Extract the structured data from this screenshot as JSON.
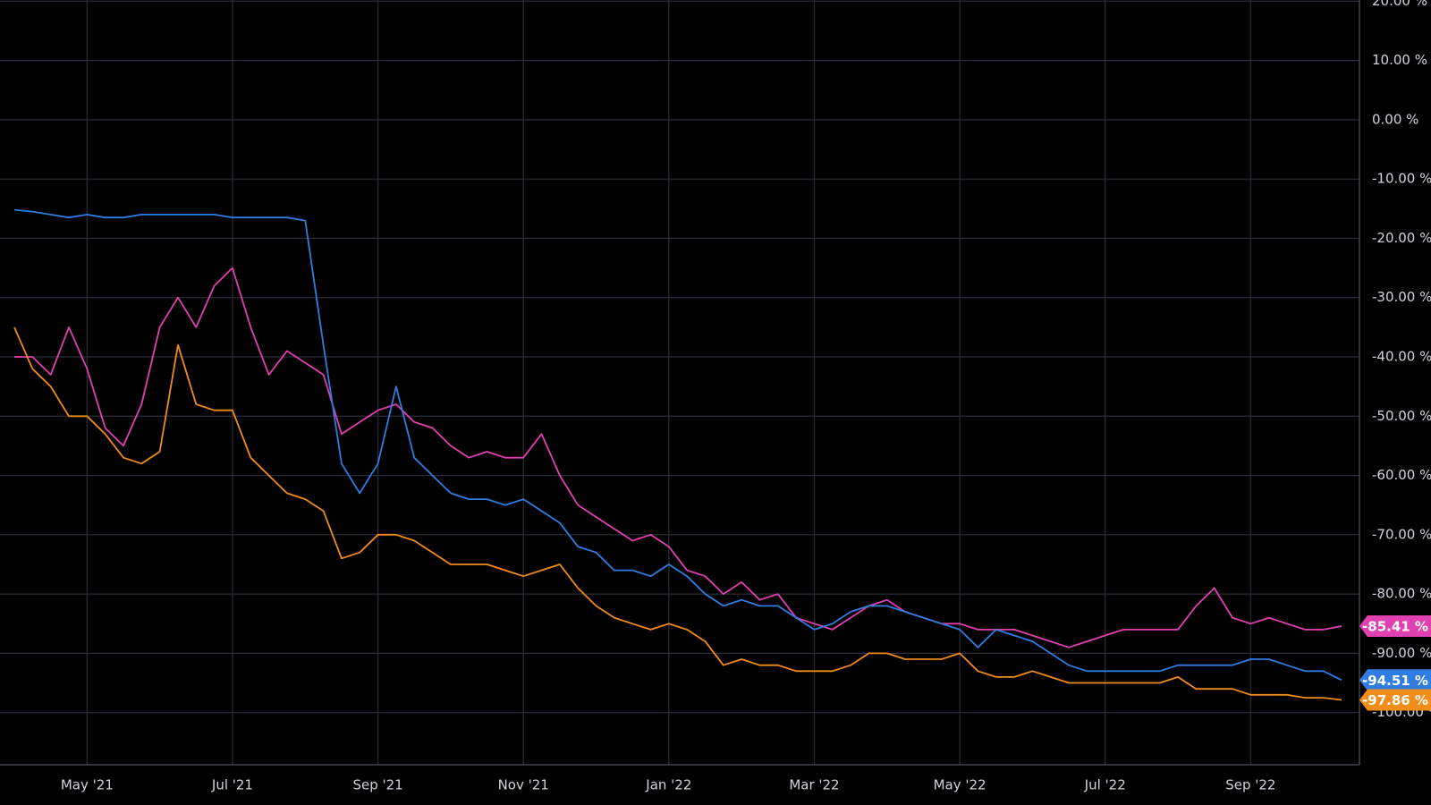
{
  "chart_data": {
    "type": "line",
    "categories": [
      null,
      null,
      null,
      null,
      "May '21",
      null,
      null,
      null,
      null,
      null,
      null,
      null,
      "Jul '21",
      null,
      null,
      null,
      null,
      null,
      null,
      null,
      "Sep '21",
      null,
      null,
      null,
      null,
      null,
      null,
      null,
      "Nov '21",
      null,
      null,
      null,
      null,
      null,
      null,
      null,
      "Jan '22",
      null,
      null,
      null,
      null,
      null,
      null,
      null,
      "Mar '22",
      null,
      null,
      null,
      null,
      null,
      null,
      null,
      "May '22",
      null,
      null,
      null,
      null,
      null,
      null,
      null,
      "Jul '22",
      null,
      null,
      null,
      null,
      null,
      null,
      null,
      "Sep '22",
      null,
      null,
      null,
      null,
      null
    ],
    "series": [
      {
        "color": "#e040b0",
        "values": [
          -40,
          -40,
          -43,
          -35,
          -42,
          -52,
          -55,
          -48,
          -35,
          -30,
          -35,
          -28,
          -25,
          -35,
          -43,
          -39,
          -41,
          -43,
          -53,
          -51,
          -49,
          -48,
          -51,
          -52,
          -55,
          -57,
          -56,
          -57,
          -57,
          -53,
          -60,
          -65,
          -67,
          -69,
          -71,
          -70,
          -72,
          -76,
          -77,
          -80,
          -78,
          -81,
          -80,
          -84,
          -85,
          -86,
          -84,
          -82,
          -81,
          -83,
          -84,
          -85,
          -85,
          -86,
          -86,
          -86,
          -87,
          -88,
          -89,
          -88,
          -87,
          -86,
          -86,
          -86,
          -86,
          -82,
          -79,
          -84,
          -85,
          -84,
          -85,
          -86,
          -86,
          -85.41
        ],
        "value_labels": [
          null,
          null,
          null,
          null,
          null,
          null,
          null,
          null,
          null,
          null,
          null,
          null,
          null,
          null,
          null,
          null,
          null,
          null,
          null,
          null,
          null,
          null,
          null,
          null,
          null,
          null,
          null,
          null,
          null,
          null,
          null,
          null,
          null,
          null,
          null,
          null,
          null,
          null,
          null,
          null,
          null,
          null,
          null,
          null,
          null,
          null,
          null,
          null,
          null,
          null,
          null,
          null,
          null,
          null,
          null,
          null,
          null,
          null,
          null,
          null,
          null,
          null,
          null,
          null,
          null,
          null,
          null,
          null,
          null,
          null,
          null,
          null,
          null,
          "-85.41 %"
        ]
      },
      {
        "color": "#2f7de1",
        "values": [
          -15.2,
          -15.5,
          -16,
          -16.5,
          -16,
          -16.5,
          -16.5,
          -16,
          -16,
          -16,
          -16,
          -16,
          -16.5,
          -16.5,
          -16.5,
          -16.5,
          -17,
          -38,
          -58,
          -63,
          -58,
          -45,
          -57,
          -60,
          -63,
          -64,
          -64,
          -65,
          -64,
          -66,
          -68,
          -72,
          -73,
          -76,
          -76,
          -77,
          -75,
          -77,
          -80,
          -82,
          -81,
          -82,
          -82,
          -84,
          -86,
          -85,
          -83,
          -82,
          -82,
          -83,
          -84,
          -85,
          -86,
          -89,
          -86,
          -87,
          -88,
          -90,
          -92,
          -93,
          -93,
          -93,
          -93,
          -93,
          -92,
          -92,
          -92,
          -92,
          -91,
          -91,
          -92,
          -93,
          -93,
          -94.51
        ],
        "value_labels": [
          null,
          null,
          null,
          null,
          null,
          null,
          null,
          null,
          null,
          null,
          null,
          null,
          null,
          null,
          null,
          null,
          null,
          null,
          null,
          null,
          null,
          null,
          null,
          null,
          null,
          null,
          null,
          null,
          null,
          null,
          null,
          null,
          null,
          null,
          null,
          null,
          null,
          null,
          null,
          null,
          null,
          null,
          null,
          null,
          null,
          null,
          null,
          null,
          null,
          null,
          null,
          null,
          null,
          null,
          null,
          null,
          null,
          null,
          null,
          null,
          null,
          null,
          null,
          null,
          null,
          null,
          null,
          null,
          null,
          null,
          null,
          null,
          null,
          "-94.51 %"
        ]
      },
      {
        "color": "#f08c1a",
        "values": [
          -35,
          -42,
          -45,
          -50,
          -50,
          -53,
          -57,
          -58,
          -56,
          -38,
          -48,
          -49,
          -49,
          -57,
          -60,
          -63,
          -64,
          -66,
          -74,
          -73,
          -70,
          -70,
          -71,
          -73,
          -75,
          -75,
          -75,
          -76,
          -77,
          -76,
          -75,
          -79,
          -82,
          -84,
          -85,
          -86,
          -85,
          -86,
          -88,
          -92,
          -91,
          -92,
          -92,
          -93,
          -93,
          -93,
          -92,
          -90,
          -90,
          -91,
          -91,
          -91,
          -90,
          -93,
          -94,
          -94,
          -93,
          -94,
          -95,
          -95,
          -95,
          -95,
          -95,
          -95,
          -94,
          -96,
          -96,
          -96,
          -97,
          -97,
          -97,
          -97.5,
          -97.5,
          -97.86
        ],
        "value_labels": [
          null,
          null,
          null,
          null,
          null,
          null,
          null,
          null,
          null,
          null,
          null,
          null,
          null,
          null,
          null,
          null,
          null,
          null,
          null,
          null,
          null,
          null,
          null,
          null,
          null,
          null,
          null,
          null,
          null,
          null,
          null,
          null,
          null,
          null,
          null,
          null,
          null,
          null,
          null,
          null,
          null,
          null,
          null,
          null,
          null,
          null,
          null,
          null,
          null,
          null,
          null,
          null,
          null,
          null,
          null,
          null,
          null,
          null,
          null,
          null,
          null,
          null,
          null,
          null,
          null,
          null,
          null,
          null,
          null,
          null,
          null,
          null,
          null,
          "-97.86 %"
        ]
      }
    ],
    "ylim": [
      -108.8,
      20.2
    ],
    "yticks": [
      {
        "value": 20,
        "label": "20.00 %"
      },
      {
        "value": 10,
        "label": "10.00 %"
      },
      {
        "value": 0,
        "label": "0.00 %"
      },
      {
        "value": -10,
        "label": "-10.00 %"
      },
      {
        "value": -20,
        "label": "-20.00 %"
      },
      {
        "value": -30,
        "label": "-30.00 %"
      },
      {
        "value": -40,
        "label": "-40.00 %"
      },
      {
        "value": -50,
        "label": "-50.00 %"
      },
      {
        "value": -60,
        "label": "-60.00 %"
      },
      {
        "value": -70,
        "label": "-70.00 %"
      },
      {
        "value": -80,
        "label": "-80.00 %"
      },
      {
        "value": -90,
        "label": "-90.00 %"
      },
      {
        "value": -100,
        "label": "-100.00 %"
      }
    ],
    "grid": true
  }
}
